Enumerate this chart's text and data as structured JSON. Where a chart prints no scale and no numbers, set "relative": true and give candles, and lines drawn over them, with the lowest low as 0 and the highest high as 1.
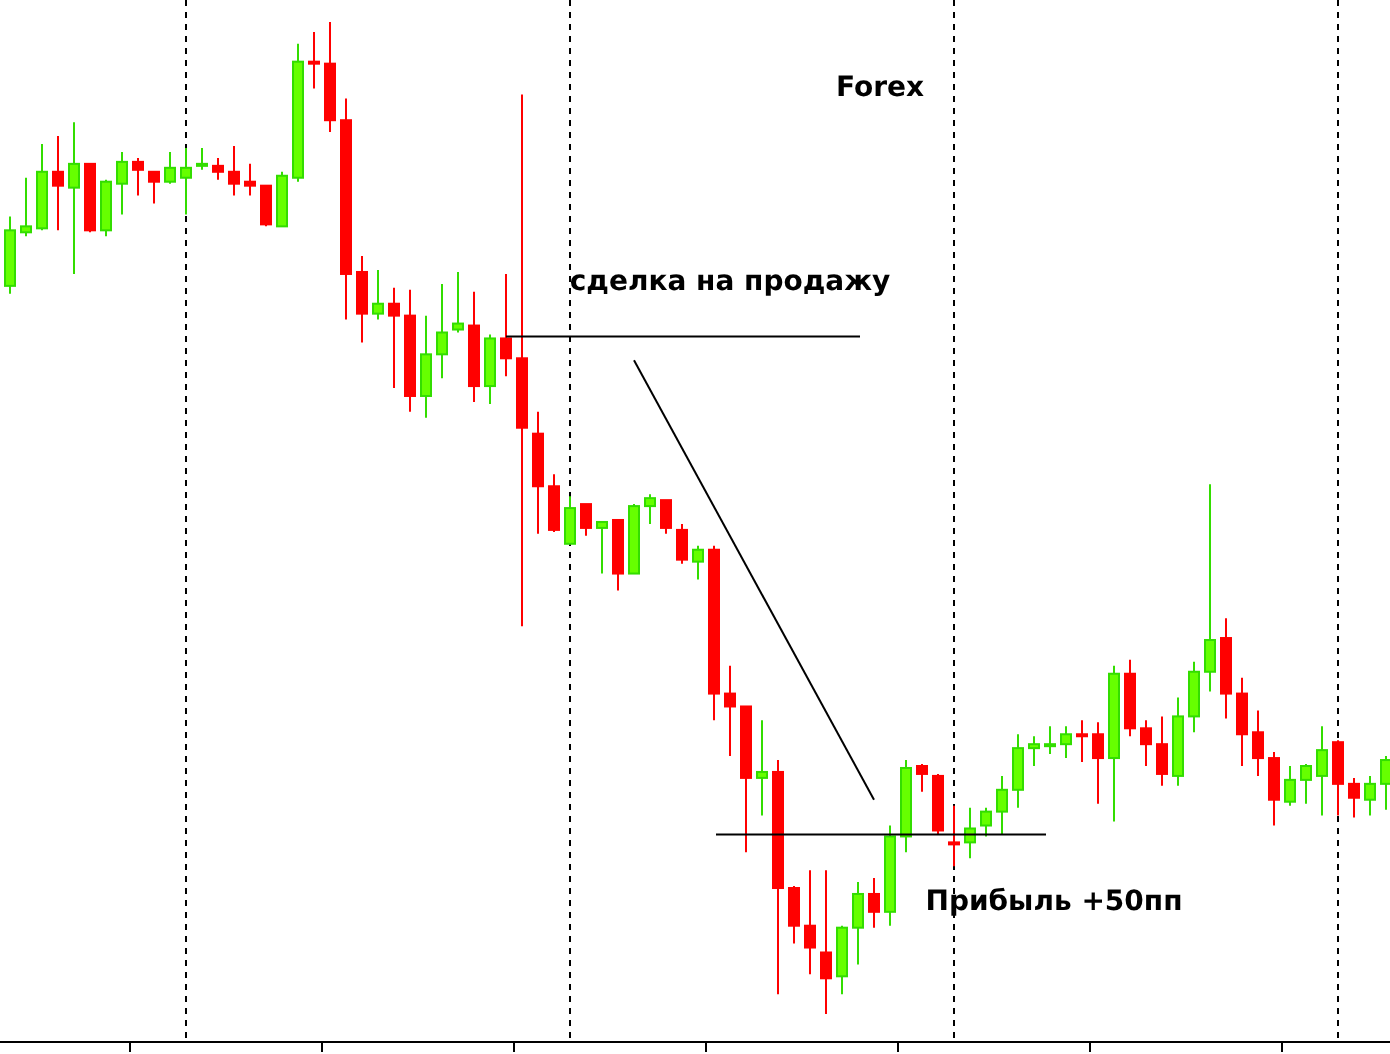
{
  "chart_data": {
    "type": "candlestick",
    "title": "Forex",
    "relative": true,
    "grid": "x",
    "categories": [
      null,
      null,
      null,
      null,
      null,
      null,
      null,
      null,
      null,
      null,
      null,
      null,
      null,
      null,
      null,
      null,
      null,
      null,
      null,
      null,
      null,
      null,
      null,
      null,
      null,
      null,
      null,
      null,
      null,
      null,
      null,
      null,
      null,
      null,
      null,
      null,
      null,
      null,
      null,
      null,
      null,
      null,
      null,
      null,
      null,
      null,
      null,
      null,
      null,
      null,
      null,
      null,
      null,
      null,
      null,
      null,
      null,
      null,
      null,
      null,
      null,
      null,
      null,
      null,
      null,
      null,
      null,
      null,
      null,
      null,
      null,
      null,
      null,
      null,
      null,
      null,
      null,
      null,
      null,
      null,
      null,
      null,
      null,
      null,
      null,
      null,
      null
    ],
    "ohlc": [
      [
        0.734,
        0.804,
        0.726,
        0.79
      ],
      [
        0.788,
        0.843,
        0.784,
        0.794
      ],
      [
        0.792,
        0.877,
        0.79,
        0.849
      ],
      [
        0.849,
        0.885,
        0.79,
        0.835
      ],
      [
        0.833,
        0.899,
        0.746,
        0.857
      ],
      [
        0.857,
        0.857,
        0.788,
        0.79
      ],
      [
        0.79,
        0.841,
        0.784,
        0.839
      ],
      [
        0.837,
        0.869,
        0.806,
        0.859
      ],
      [
        0.859,
        0.863,
        0.825,
        0.851
      ],
      [
        0.849,
        0.849,
        0.817,
        0.839
      ],
      [
        0.839,
        0.869,
        0.837,
        0.853
      ],
      [
        0.843,
        0.873,
        0.806,
        0.853
      ],
      [
        0.855,
        0.873,
        0.851,
        0.857
      ],
      [
        0.855,
        0.863,
        0.841,
        0.849
      ],
      [
        0.849,
        0.875,
        0.825,
        0.837
      ],
      [
        0.839,
        0.857,
        0.825,
        0.835
      ],
      [
        0.835,
        0.835,
        0.794,
        0.796
      ],
      [
        0.794,
        0.849,
        0.794,
        0.845
      ],
      [
        0.843,
        0.978,
        0.839,
        0.96
      ],
      [
        0.96,
        0.99,
        0.933,
        0.958
      ],
      [
        0.958,
        1,
        0.889,
        0.901
      ],
      [
        0.901,
        0.923,
        0.7,
        0.746
      ],
      [
        0.748,
        0.764,
        0.677,
        0.706
      ],
      [
        0.706,
        0.75,
        0.7,
        0.716
      ],
      [
        0.716,
        0.732,
        0.631,
        0.704
      ],
      [
        0.704,
        0.73,
        0.607,
        0.623
      ],
      [
        0.623,
        0.704,
        0.601,
        0.665
      ],
      [
        0.665,
        0.736,
        0.641,
        0.687
      ],
      [
        0.69,
        0.748,
        0.687,
        0.696
      ],
      [
        0.694,
        0.728,
        0.617,
        0.633
      ],
      [
        0.633,
        0.685,
        0.615,
        0.681
      ],
      [
        0.681,
        0.746,
        0.643,
        0.661
      ],
      [
        0.661,
        0.927,
        0.391,
        0.591
      ],
      [
        0.585,
        0.607,
        0.484,
        0.532
      ],
      [
        0.532,
        0.544,
        0.486,
        0.488
      ],
      [
        0.474,
        0.522,
        0.474,
        0.51
      ],
      [
        0.514,
        0.514,
        0.482,
        0.49
      ],
      [
        0.49,
        0.496,
        0.444,
        0.496
      ],
      [
        0.498,
        0.498,
        0.427,
        0.444
      ],
      [
        0.444,
        0.514,
        0.444,
        0.512
      ],
      [
        0.512,
        0.524,
        0.494,
        0.52
      ],
      [
        0.518,
        0.518,
        0.484,
        0.49
      ],
      [
        0.488,
        0.494,
        0.454,
        0.458
      ],
      [
        0.456,
        0.472,
        0.438,
        0.468
      ],
      [
        0.468,
        0.472,
        0.296,
        0.323
      ],
      [
        0.323,
        0.351,
        0.26,
        0.31
      ],
      [
        0.31,
        0.31,
        0.163,
        0.238
      ],
      [
        0.238,
        0.296,
        0.2,
        0.244
      ],
      [
        0.244,
        0.256,
        0.02,
        0.127
      ],
      [
        0.127,
        0.129,
        0.071,
        0.089
      ],
      [
        0.089,
        0.145,
        0.04,
        0.067
      ],
      [
        0.062,
        0.145,
        0,
        0.036
      ],
      [
        0.038,
        0.089,
        0.02,
        0.087
      ],
      [
        0.087,
        0.133,
        0.05,
        0.121
      ],
      [
        0.121,
        0.137,
        0.087,
        0.103
      ],
      [
        0.103,
        0.19,
        0.089,
        0.179
      ],
      [
        0.179,
        0.256,
        0.163,
        0.248
      ],
      [
        0.25,
        0.252,
        0.224,
        0.242
      ],
      [
        0.24,
        0.242,
        0.181,
        0.185
      ],
      [
        0.173,
        0.21,
        0.149,
        0.171
      ],
      [
        0.173,
        0.208,
        0.157,
        0.187
      ],
      [
        0.19,
        0.208,
        0.179,
        0.204
      ],
      [
        0.204,
        0.24,
        0.181,
        0.226
      ],
      [
        0.226,
        0.282,
        0.208,
        0.268
      ],
      [
        0.268,
        0.28,
        0.25,
        0.272
      ],
      [
        0.27,
        0.29,
        0.262,
        0.272
      ],
      [
        0.272,
        0.29,
        0.258,
        0.282
      ],
      [
        0.282,
        0.296,
        0.254,
        0.28
      ],
      [
        0.282,
        0.294,
        0.212,
        0.258
      ],
      [
        0.258,
        0.351,
        0.194,
        0.343
      ],
      [
        0.343,
        0.357,
        0.28,
        0.288
      ],
      [
        0.288,
        0.296,
        0.25,
        0.272
      ],
      [
        0.272,
        0.3,
        0.23,
        0.242
      ],
      [
        0.24,
        0.319,
        0.23,
        0.3
      ],
      [
        0.3,
        0.355,
        0.284,
        0.345
      ],
      [
        0.345,
        0.534,
        0.325,
        0.377
      ],
      [
        0.379,
        0.399,
        0.298,
        0.323
      ],
      [
        0.323,
        0.339,
        0.25,
        0.282
      ],
      [
        0.284,
        0.306,
        0.24,
        0.258
      ],
      [
        0.258,
        0.264,
        0.19,
        0.216
      ],
      [
        0.214,
        0.25,
        0.21,
        0.236
      ],
      [
        0.236,
        0.252,
        0.212,
        0.25
      ],
      [
        0.24,
        0.29,
        0.2,
        0.266
      ],
      [
        0.274,
        0.276,
        0.2,
        0.232
      ],
      [
        0.232,
        0.238,
        0.198,
        0.218
      ],
      [
        0.216,
        0.24,
        0.2,
        0.232
      ],
      [
        0.232,
        0.26,
        0.206,
        0.256
      ]
    ],
    "series": [
      {
        "type": "line",
        "color": "#000000",
        "values": [
          null,
          null,
          null,
          null,
          null,
          null,
          null,
          null,
          null,
          null,
          null,
          null,
          null,
          null,
          null,
          null,
          null,
          null,
          null,
          null,
          null,
          null,
          null,
          null,
          null,
          null,
          null,
          null,
          null,
          null,
          null,
          null,
          null,
          null,
          null,
          null,
          null,
          null,
          null,
          0.659,
          null,
          null,
          null,
          null,
          null,
          null,
          null,
          null,
          null,
          null,
          null,
          null,
          null,
          null,
          0.216,
          null,
          null,
          null,
          null,
          null,
          null,
          null,
          null,
          null,
          null,
          null,
          null,
          null,
          null,
          null,
          null,
          null,
          null,
          null,
          null,
          null,
          null,
          null,
          null,
          null,
          null,
          null,
          null,
          null,
          null,
          null,
          null
        ]
      }
    ],
    "ref_lines": [
      {
        "axis": "y",
        "value": 0.683,
        "label": "сделка на продажу"
      },
      {
        "axis": "y",
        "value": 0.181,
        "label": "Прибыль +50пп"
      }
    ]
  }
}
